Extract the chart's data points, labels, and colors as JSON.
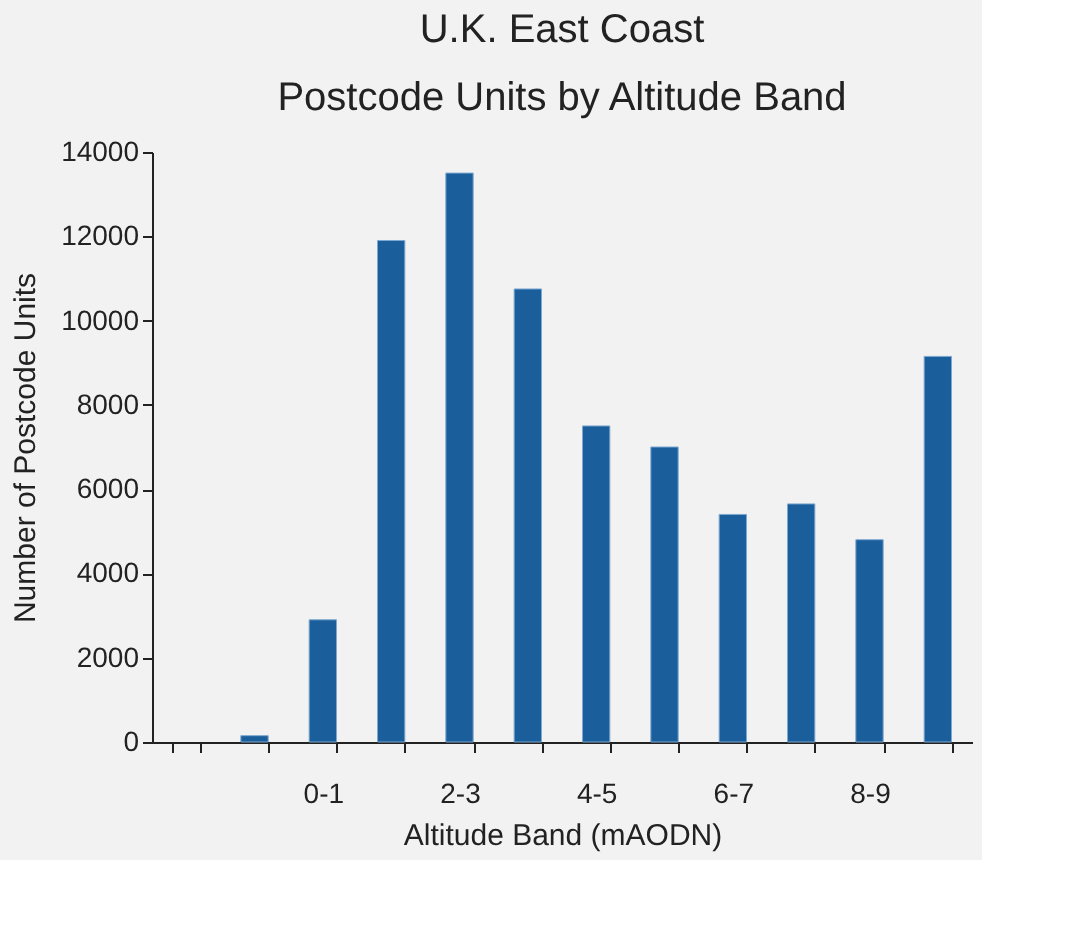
{
  "chart_data": {
    "type": "bar",
    "title": [
      "U.K. East Coast",
      "Postcode Units by Altitude Band"
    ],
    "xlabel": "Altitude Band (mAODN)",
    "ylabel": "Number of Postcode Units",
    "categories": [
      null,
      null,
      "0-1",
      null,
      "2-3",
      null,
      "4-5",
      null,
      "6-7",
      null,
      "8-9",
      null
    ],
    "values": [
      null,
      150,
      2900,
      11900,
      13500,
      10750,
      7500,
      7000,
      5400,
      5650,
      4800,
      9150
    ],
    "color": "#1a5f9c",
    "ylim": [
      0,
      14000
    ],
    "yticks": [
      0,
      2000,
      4000,
      6000,
      8000,
      10000,
      12000,
      14000
    ],
    "grid": false
  }
}
